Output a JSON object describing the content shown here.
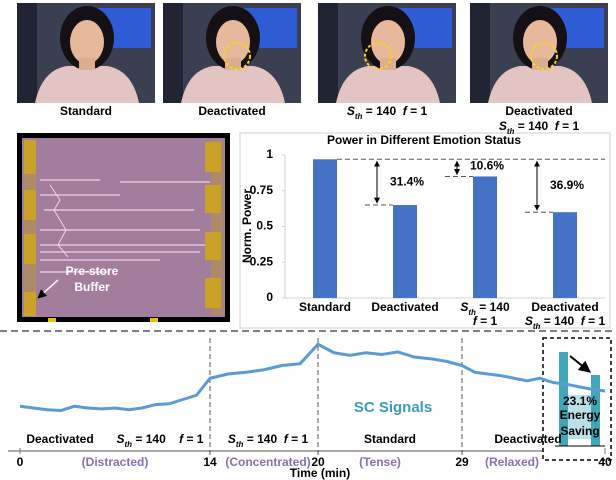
{
  "photos": {
    "captions": [
      [
        [
          {
            "t": "Standard"
          }
        ]
      ],
      [
        [
          {
            "t": "Deactivated"
          }
        ]
      ],
      [
        [
          {
            "t": "S",
            "i": true
          },
          {
            "t": "th",
            "i": true,
            "sub": true
          },
          {
            "t": " = 140  "
          },
          {
            "t": "f",
            "i": true
          },
          {
            "t": " = 1"
          }
        ]
      ],
      [
        [
          {
            "t": "Deactivated"
          }
        ],
        [
          {
            "t": "S",
            "i": true
          },
          {
            "t": "th",
            "i": true,
            "sub": true
          },
          {
            "t": " = 140  "
          },
          {
            "t": "f",
            "i": true
          },
          {
            "t": " = 1"
          }
        ]
      ]
    ]
  },
  "chip": {
    "label_lines": [
      "Pre-store",
      "Buffer"
    ]
  },
  "chart_data": [
    {
      "type": "bar",
      "title": "Power in Different Emotion Status",
      "ylabel": "Norm. Power",
      "categories": [
        [
          [
            {
              "t": "Standard"
            }
          ]
        ],
        [
          [
            {
              "t": "Deactivated"
            }
          ]
        ],
        [
          [
            {
              "t": "S",
              "i": true
            },
            {
              "t": "th",
              "i": true,
              "sub": true
            },
            {
              "t": " = 140"
            }
          ],
          [
            {
              "t": "f",
              "i": true
            },
            {
              "t": " = 1"
            }
          ]
        ],
        [
          [
            {
              "t": "Deactivated"
            }
          ],
          [
            {
              "t": "S",
              "i": true
            },
            {
              "t": "th",
              "i": true,
              "sub": true
            },
            {
              "t": " = 140  "
            },
            {
              "t": "f",
              "i": true
            },
            {
              "t": " = 1"
            }
          ]
        ]
      ],
      "values": [
        0.97,
        0.65,
        0.85,
        0.6
      ],
      "color": "#4472c4",
      "annotations": [
        "31.4%",
        "10.6%",
        "36.9%"
      ],
      "ylim": [
        0,
        1
      ],
      "yticks": [
        0,
        0.25,
        0.5,
        0.75,
        1
      ],
      "grid": false
    },
    {
      "type": "line",
      "title": "SC Signals",
      "xlabel": "Time (min)",
      "x": [
        0,
        1,
        2,
        3,
        4,
        5,
        6,
        7,
        8,
        9,
        10,
        11,
        12,
        13,
        14,
        15,
        16,
        17,
        18,
        19,
        20,
        21,
        22,
        23,
        24,
        25,
        26,
        27,
        28,
        29,
        30,
        31,
        32,
        33,
        34,
        35,
        36,
        37,
        38,
        39,
        40
      ],
      "series": [
        {
          "color": "#5b9bd5",
          "values": [
            0.22,
            0.2,
            0.18,
            0.17,
            0.22,
            0.2,
            0.19,
            0.2,
            0.18,
            0.2,
            0.24,
            0.25,
            0.3,
            0.35,
            0.55,
            0.6,
            0.62,
            0.65,
            0.7,
            0.72,
            0.95,
            0.85,
            0.82,
            0.85,
            0.83,
            0.86,
            0.8,
            0.78,
            0.75,
            0.7,
            0.62,
            0.6,
            0.58,
            0.55,
            0.52,
            0.55,
            0.5,
            0.48,
            0.45,
            0.42,
            0.4
          ]
        }
      ],
      "xlim": [
        0,
        40
      ],
      "xticks": [
        0,
        14,
        20,
        29,
        40
      ],
      "phases": [
        {
          "labels": [
            [
              {
                "t": "Deactivated"
              }
            ],
            [
              {
                "t": "S",
                "i": true
              },
              {
                "t": "th",
                "i": true,
                "sub": true
              },
              {
                "t": " = 140    "
              },
              {
                "t": "f",
                "i": true
              },
              {
                "t": " = 1"
              }
            ]
          ],
          "state": "(Distracted)"
        },
        {
          "labels": [
            [
              {
                "t": "S",
                "i": true
              },
              {
                "t": "th",
                "i": true,
                "sub": true
              },
              {
                "t": " = 140  "
              },
              {
                "t": "f",
                "i": true
              },
              {
                "t": " = 1"
              }
            ]
          ],
          "state": "(Concentrated)"
        },
        {
          "labels": [
            [
              {
                "t": "Standard"
              }
            ]
          ],
          "state": "(Tense)"
        },
        {
          "labels": [
            [
              {
                "t": "Deactivated"
              }
            ]
          ],
          "state": "(Relaxed)"
        }
      ],
      "saving": [
        "23.1%",
        "Energy",
        "Saving"
      ]
    }
  ]
}
